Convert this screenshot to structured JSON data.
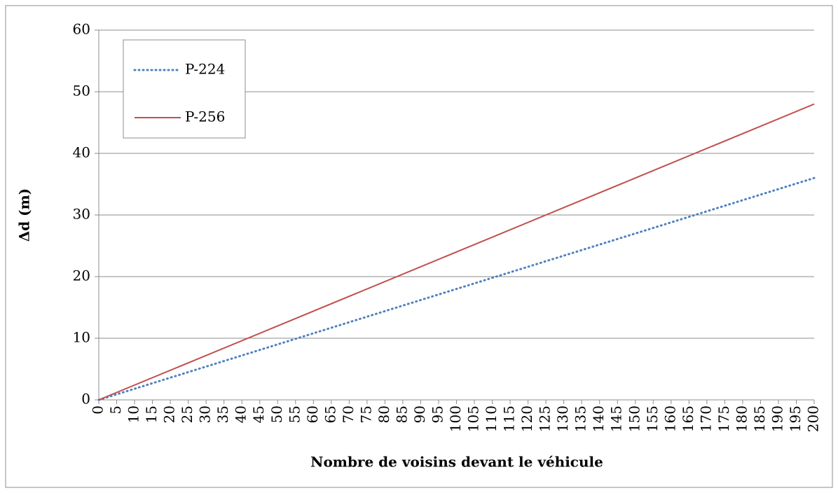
{
  "chart_data": {
    "type": "line",
    "x_label": "Nombre de voisins devant le véhicule",
    "y_label": "Δd (m)",
    "x": [
      0,
      50,
      100,
      150,
      200
    ],
    "series": [
      {
        "name": "P-224",
        "color": "#4f81bd",
        "style": "dotted",
        "values": [
          0,
          9,
          18,
          27,
          36
        ]
      },
      {
        "name": "P-256",
        "color": "#c0504d",
        "style": "solid",
        "values": [
          0,
          12,
          24,
          36,
          48
        ]
      }
    ],
    "xlim": [
      0,
      200
    ],
    "xticks": [
      0,
      5,
      10,
      15,
      20,
      25,
      30,
      35,
      40,
      45,
      50,
      55,
      60,
      65,
      70,
      75,
      80,
      85,
      90,
      95,
      100,
      105,
      110,
      115,
      120,
      125,
      130,
      135,
      140,
      145,
      150,
      155,
      160,
      165,
      170,
      175,
      180,
      185,
      190,
      195,
      200
    ],
    "ylim": [
      0,
      60
    ],
    "yticks": [
      0,
      10,
      20,
      30,
      40,
      50,
      60
    ],
    "grid": true,
    "legend": "upper left"
  }
}
